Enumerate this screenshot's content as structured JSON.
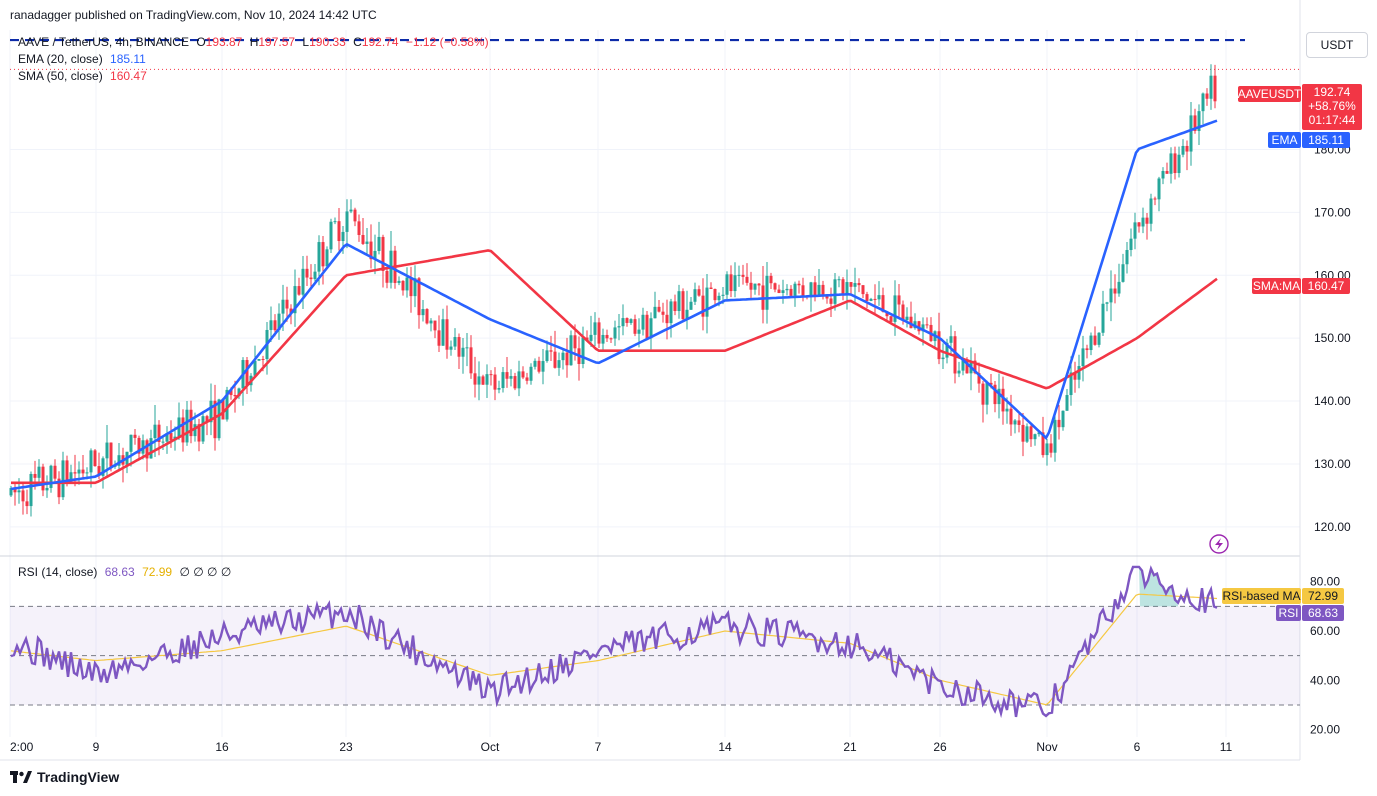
{
  "header": {
    "credit": "ranadagger published on TradingView.com, Nov 10, 2024 14:42 UTC"
  },
  "legend": {
    "symbol": "AAVE / TetherUS, 4h, BINANCE",
    "o_label": "O",
    "o": "193.87",
    "h_label": "H",
    "h": "197.57",
    "l_label": "L",
    "l": "190.33",
    "c_label": "C",
    "c": "192.74",
    "change": "−1.12 (−0.58%)",
    "ema_label": "EMA (20, close)",
    "ema_value": "185.11",
    "sma_label": "SMA (50, close)",
    "sma_value": "160.47"
  },
  "rsi_legend": {
    "label": "RSI (14, close)",
    "rsi_value": "68.63",
    "ma_value": "72.99",
    "extras": "∅ ∅ ∅ ∅"
  },
  "price_scale": {
    "currency": "USDT",
    "ticks": [
      "180.00",
      "170.00",
      "160.00",
      "150.00",
      "140.00",
      "130.00",
      "120.00"
    ],
    "tick_values": [
      180,
      170,
      160,
      150,
      140,
      130,
      120
    ]
  },
  "rsi_scale": {
    "ticks": [
      "80.00",
      "60.00",
      "40.00",
      "20.00"
    ],
    "tick_values": [
      80,
      60,
      40,
      20
    ]
  },
  "time_axis": {
    "labels": [
      "2:00",
      "9",
      "16",
      "23",
      "Oct",
      "7",
      "14",
      "21",
      "26",
      "Nov",
      "6",
      "11"
    ]
  },
  "tags": {
    "price_symbol": "AAVEUSDT",
    "price_value": "192.74",
    "price_change": "+58.76%",
    "countdown": "01:17:44",
    "ema_name": "EMA",
    "ema_value": "185.11",
    "sma_name": "SMA:MA",
    "sma_value": "160.47",
    "rsi_ma_name": "RSI-based MA",
    "rsi_ma_value": "72.99",
    "rsi_name": "RSI",
    "rsi_value": "68.63"
  },
  "footer": {
    "brand": "TradingView"
  },
  "colors": {
    "up": "#26a69a",
    "down": "#f23645",
    "ema": "#2962ff",
    "sma": "#f23645",
    "rsi": "#7e57c2",
    "rsi_ma": "#f5c842",
    "resistance": "#0d2ba8"
  },
  "chart_data": {
    "type": "candlestick",
    "symbol": "AAVE / TetherUS",
    "interval": "4h",
    "ylim": [
      116,
      199
    ],
    "resistance_level": 197.4,
    "last_price": 192.74,
    "anchors": {
      "x_labels": [
        "2:00",
        "9",
        "16",
        "23",
        "Oct",
        "7",
        "14",
        "21",
        "26",
        "Nov",
        "6",
        "11"
      ],
      "close": [
        125,
        130,
        138,
        170,
        142,
        150,
        158,
        158,
        150,
        132,
        168,
        192.7
      ],
      "ema": [
        126,
        128,
        140,
        165,
        153,
        146,
        156,
        157,
        150,
        134,
        180,
        185.1
      ],
      "sma": [
        127,
        127,
        138,
        160,
        164,
        148,
        148,
        156,
        148,
        142,
        150,
        160.5
      ],
      "rsi": [
        56,
        42,
        58,
        68,
        35,
        52,
        62,
        55,
        38,
        28,
        85,
        68.6
      ],
      "rsi_ma": [
        52,
        48,
        52,
        62,
        42,
        48,
        60,
        55,
        40,
        30,
        75,
        73
      ]
    },
    "rsi_bands": {
      "upper": 70,
      "middle": 50,
      "lower": 30,
      "ylim": [
        17,
        88
      ]
    }
  }
}
